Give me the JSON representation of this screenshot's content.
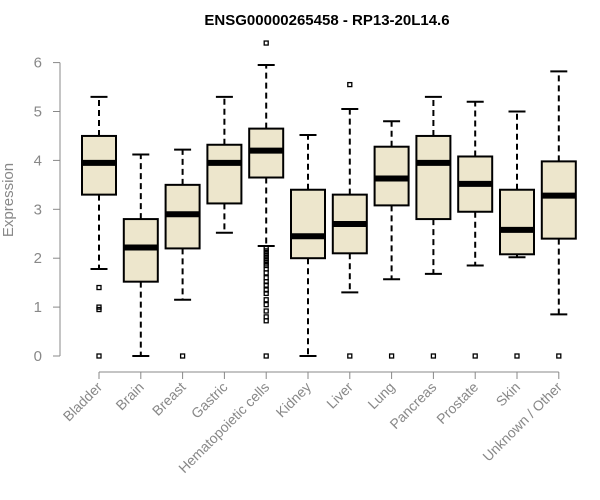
{
  "chart_data": {
    "type": "box",
    "title": "ENSG00000265458 - RP13-20L14.6",
    "xlabel": "",
    "ylabel": "Expression",
    "ylim": [
      0,
      6.5
    ],
    "yticks": [
      0,
      1,
      2,
      3,
      4,
      5,
      6
    ],
    "grid": false,
    "colors": {
      "box_fill": "#ede6cc",
      "box_stroke": "#000000",
      "axis": "#888888",
      "outlier": "#000000"
    },
    "categories": [
      "Bladder",
      "Brain",
      "Breast",
      "Gastric",
      "Hematopoietic cells",
      "Kidney",
      "Liver",
      "Lung",
      "Pancreas",
      "Prostate",
      "Skin",
      "Unknown / Other"
    ],
    "boxes": [
      {
        "category": "Bladder",
        "whisker_low": 1.78,
        "q1": 3.3,
        "median": 3.95,
        "q3": 4.5,
        "whisker_high": 5.3,
        "outliers": [
          0,
          0.95,
          1.0,
          1.4
        ]
      },
      {
        "category": "Brain",
        "whisker_low": 0.0,
        "q1": 1.52,
        "median": 2.22,
        "q3": 2.8,
        "whisker_high": 4.12,
        "outliers": []
      },
      {
        "category": "Breast",
        "whisker_low": 1.15,
        "q1": 2.2,
        "median": 2.9,
        "q3": 3.5,
        "whisker_high": 4.22,
        "outliers": [
          0
        ]
      },
      {
        "category": "Gastric",
        "whisker_low": 2.52,
        "q1": 3.12,
        "median": 3.95,
        "q3": 4.32,
        "whisker_high": 5.3,
        "outliers": []
      },
      {
        "category": "Hematopoietic cells",
        "whisker_low": 2.25,
        "q1": 3.65,
        "median": 4.2,
        "q3": 4.65,
        "whisker_high": 5.95,
        "outliers": [
          0,
          0.72,
          0.8,
          0.92,
          1.05,
          1.15,
          1.28,
          1.35,
          1.45,
          1.52,
          1.6,
          1.7,
          1.78,
          1.85,
          1.9,
          1.95,
          2.0,
          2.05,
          2.1,
          2.15,
          2.2,
          6.4
        ]
      },
      {
        "category": "Kidney",
        "whisker_low": 0.0,
        "q1": 2.0,
        "median": 2.45,
        "q3": 3.4,
        "whisker_high": 4.52,
        "outliers": []
      },
      {
        "category": "Liver",
        "whisker_low": 1.3,
        "q1": 2.1,
        "median": 2.7,
        "q3": 3.3,
        "whisker_high": 5.05,
        "outliers": [
          0,
          5.55
        ]
      },
      {
        "category": "Lung",
        "whisker_low": 1.57,
        "q1": 3.08,
        "median": 3.63,
        "q3": 4.28,
        "whisker_high": 4.8,
        "outliers": [
          0
        ]
      },
      {
        "category": "Pancreas",
        "whisker_low": 1.68,
        "q1": 2.8,
        "median": 3.95,
        "q3": 4.5,
        "whisker_high": 5.3,
        "outliers": [
          0
        ]
      },
      {
        "category": "Prostate",
        "whisker_low": 1.85,
        "q1": 2.95,
        "median": 3.52,
        "q3": 4.08,
        "whisker_high": 5.2,
        "outliers": [
          0
        ]
      },
      {
        "category": "Skin",
        "whisker_low": 2.02,
        "q1": 2.08,
        "median": 2.58,
        "q3": 3.4,
        "whisker_high": 5.0,
        "outliers": [
          0
        ]
      },
      {
        "category": "Unknown / Other",
        "whisker_low": 0.85,
        "q1": 2.4,
        "median": 3.28,
        "q3": 3.98,
        "whisker_high": 5.82,
        "outliers": [
          0
        ]
      }
    ]
  }
}
